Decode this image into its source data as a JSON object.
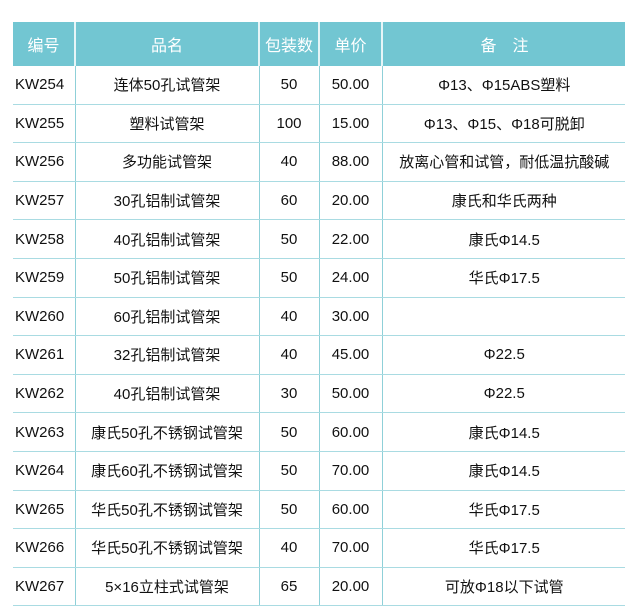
{
  "header": {
    "code": "编号",
    "name": "品名",
    "pack": "包装数",
    "price": "单价",
    "note": "备　注"
  },
  "rows": [
    {
      "code": "KW254",
      "name": "连体50孔试管架",
      "pack": "50",
      "price": "50.00",
      "note": "Φ13、Φ15ABS塑料"
    },
    {
      "code": "KW255",
      "name": "塑料试管架",
      "pack": "100",
      "price": "15.00",
      "note": "Φ13、Φ15、Φ18可脱卸"
    },
    {
      "code": "KW256",
      "name": "多功能试管架",
      "pack": "40",
      "price": "88.00",
      "note": "放离心管和试管，耐低温抗酸碱"
    },
    {
      "code": "KW257",
      "name": "30孔铝制试管架",
      "pack": "60",
      "price": "20.00",
      "note": "康氏和华氏两种"
    },
    {
      "code": "KW258",
      "name": "40孔铝制试管架",
      "pack": "50",
      "price": "22.00",
      "note": "康氏Φ14.5"
    },
    {
      "code": "KW259",
      "name": "50孔铝制试管架",
      "pack": "50",
      "price": "24.00",
      "note": "华氏Φ17.5"
    },
    {
      "code": "KW260",
      "name": "60孔铝制试管架",
      "pack": "40",
      "price": "30.00",
      "note": ""
    },
    {
      "code": "KW261",
      "name": "32孔铝制试管架",
      "pack": "40",
      "price": "45.00",
      "note": "Φ22.5"
    },
    {
      "code": "KW262",
      "name": "40孔铝制试管架",
      "pack": "30",
      "price": "50.00",
      "note": "Φ22.5"
    },
    {
      "code": "KW263",
      "name": "康氏50孔不锈钢试管架",
      "pack": "50",
      "price": "60.00",
      "note": "康氏Φ14.5"
    },
    {
      "code": "KW264",
      "name": "康氏60孔不锈钢试管架",
      "pack": "50",
      "price": "70.00",
      "note": "康氏Φ14.5"
    },
    {
      "code": "KW265",
      "name": "华氏50孔不锈钢试管架",
      "pack": "50",
      "price": "60.00",
      "note": "华氏Φ17.5"
    },
    {
      "code": "KW266",
      "name": "华氏50孔不锈钢试管架",
      "pack": "40",
      "price": "70.00",
      "note": "华氏Φ17.5"
    },
    {
      "code": "KW267",
      "name": "5×16立柱式试管架",
      "pack": "65",
      "price": "20.00",
      "note": "可放Φ18以下试管"
    }
  ],
  "colors": {
    "header_bg": "#72c6d2",
    "grid": "#a9dbe2"
  }
}
